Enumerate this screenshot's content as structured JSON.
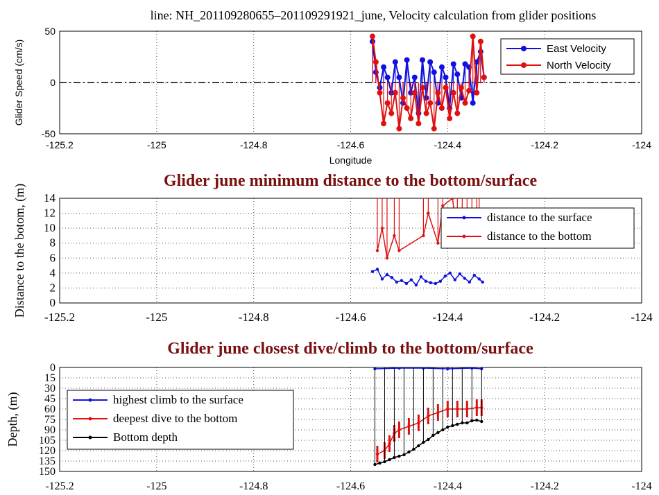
{
  "chart_data": [
    {
      "type": "line",
      "title": "line: NH_201109280655–201109291921_june, Velocity calculation from glider positions",
      "xlabel": "Longitude",
      "ylabel": "Glider Speed (cm/s)",
      "xlim": [
        -125.2,
        -124
      ],
      "ylim": [
        -50,
        50
      ],
      "x_ticks": [
        "-125.2",
        "-125",
        "-124.8",
        "-124.6",
        "-124.4",
        "-124.2",
        "-124"
      ],
      "y_ticks": [
        "50",
        "0",
        "-50"
      ],
      "grid": true,
      "legend_position": "top-right",
      "reference_line": {
        "y": 0,
        "style": "dash-dot",
        "color": "#000000"
      },
      "series": [
        {
          "name": "East Velocity",
          "color": "#1010e0",
          "x": [
            -124.555,
            -124.548,
            -124.54,
            -124.532,
            -124.524,
            -124.516,
            -124.508,
            -124.5,
            -124.492,
            -124.484,
            -124.476,
            -124.468,
            -124.46,
            -124.452,
            -124.444,
            -124.436,
            -124.428,
            -124.42,
            -124.412,
            -124.404,
            -124.396,
            -124.388,
            -124.38,
            -124.372,
            -124.364,
            -124.356,
            -124.348,
            -124.34,
            -124.332,
            -124.325
          ],
          "values": [
            40,
            10,
            -5,
            15,
            5,
            -10,
            20,
            5,
            -20,
            22,
            -10,
            5,
            -30,
            22,
            -15,
            20,
            10,
            -20,
            15,
            5,
            -25,
            18,
            8,
            -15,
            18,
            15,
            -20,
            20,
            30,
            5
          ]
        },
        {
          "name": "North Velocity",
          "color": "#e01010",
          "x": [
            -124.555,
            -124.548,
            -124.54,
            -124.532,
            -124.524,
            -124.516,
            -124.508,
            -124.5,
            -124.492,
            -124.484,
            -124.476,
            -124.468,
            -124.46,
            -124.452,
            -124.444,
            -124.436,
            -124.428,
            -124.42,
            -124.412,
            -124.404,
            -124.396,
            -124.388,
            -124.38,
            -124.372,
            -124.364,
            -124.356,
            -124.348,
            -124.34,
            -124.332,
            -124.325
          ],
          "values": [
            45,
            20,
            -10,
            -40,
            -20,
            -30,
            -10,
            -45,
            -15,
            -25,
            -35,
            -10,
            -40,
            -5,
            -30,
            -20,
            -45,
            -10,
            -25,
            -5,
            -35,
            -10,
            -30,
            -5,
            -20,
            -8,
            45,
            -10,
            40,
            5
          ]
        }
      ]
    },
    {
      "type": "line",
      "title": "Glider june minimum distance to the bottom/surface",
      "xlabel": "",
      "ylabel": "Distance to the botom, (m)",
      "xlim": [
        -125.2,
        -124
      ],
      "ylim": [
        0,
        14
      ],
      "x_ticks": [
        "-125.2",
        "-125",
        "-124.8",
        "-124.6",
        "-124.4",
        "-124.2",
        "-124"
      ],
      "y_ticks": [
        "14",
        "12",
        "10",
        "8",
        "6",
        "4",
        "2",
        "0"
      ],
      "grid": true,
      "legend_position": "top-right",
      "series": [
        {
          "name": "distance to the surface",
          "color": "#1010e0",
          "x": [
            -124.555,
            -124.545,
            -124.535,
            -124.525,
            -124.515,
            -124.505,
            -124.495,
            -124.485,
            -124.475,
            -124.465,
            -124.455,
            -124.445,
            -124.435,
            -124.425,
            -124.415,
            -124.405,
            -124.395,
            -124.385,
            -124.375,
            -124.365,
            -124.355,
            -124.345,
            -124.335,
            -124.328
          ],
          "values": [
            4.2,
            4.5,
            3.2,
            3.8,
            3.4,
            2.8,
            3.0,
            2.6,
            3.1,
            2.4,
            3.5,
            2.9,
            2.7,
            2.6,
            2.9,
            3.6,
            4.0,
            3.1,
            3.9,
            3.3,
            2.8,
            3.7,
            3.2,
            2.8
          ]
        },
        {
          "name": "distance to the bottom",
          "color": "#e01010",
          "x": [
            -124.545,
            -124.535,
            -124.525,
            -124.51,
            -124.5,
            -124.45,
            -124.44,
            -124.42,
            -124.41,
            -124.39,
            -124.38,
            -124.37,
            -124.36,
            -124.35,
            -124.34,
            -124.335
          ],
          "values": [
            7,
            10,
            6,
            9,
            7,
            9,
            12,
            8,
            13,
            14,
            9,
            11,
            8,
            12,
            8,
            11
          ]
        }
      ]
    },
    {
      "type": "line",
      "title": "Glider june closest dive/climb to the bottom/surface",
      "xlabel": "",
      "ylabel": "Depth, (m)",
      "xlim": [
        -125.2,
        -124
      ],
      "ylim": [
        150,
        0
      ],
      "x_ticks": [
        "-125.2",
        "-125",
        "-124.8",
        "-124.6",
        "-124.4",
        "-124.2",
        "-124"
      ],
      "y_ticks": [
        "0",
        "15",
        "30",
        "45",
        "60",
        "75",
        "90",
        "105",
        "120",
        "135",
        "150"
      ],
      "grid": true,
      "legend_position": "left",
      "series": [
        {
          "name": "highest climb to the surface",
          "color": "#1010e0",
          "x": [
            -124.55,
            -124.5,
            -124.45,
            -124.4,
            -124.35,
            -124.33
          ],
          "values": [
            2,
            1,
            1,
            2,
            1,
            2
          ]
        },
        {
          "name": "deepest dive to the bottom",
          "color": "#e01010",
          "x": [
            -124.545,
            -124.53,
            -124.52,
            -124.51,
            -124.5,
            -124.48,
            -124.46,
            -124.44,
            -124.42,
            -124.4,
            -124.38,
            -124.36,
            -124.34,
            -124.33
          ],
          "values": [
            125,
            120,
            110,
            95,
            90,
            85,
            80,
            70,
            65,
            60,
            60,
            60,
            58,
            58
          ]
        },
        {
          "name": "Bottom depth",
          "color": "#000000",
          "x": [
            -124.55,
            -124.54,
            -124.53,
            -124.52,
            -124.51,
            -124.5,
            -124.49,
            -124.48,
            -124.47,
            -124.46,
            -124.45,
            -124.44,
            -124.43,
            -124.42,
            -124.41,
            -124.4,
            -124.39,
            -124.38,
            -124.37,
            -124.36,
            -124.35,
            -124.34,
            -124.33
          ],
          "values": [
            140,
            138,
            136,
            133,
            130,
            128,
            126,
            122,
            118,
            113,
            108,
            104,
            98,
            94,
            90,
            86,
            84,
            82,
            80,
            80,
            77,
            76,
            78
          ]
        }
      ]
    }
  ]
}
